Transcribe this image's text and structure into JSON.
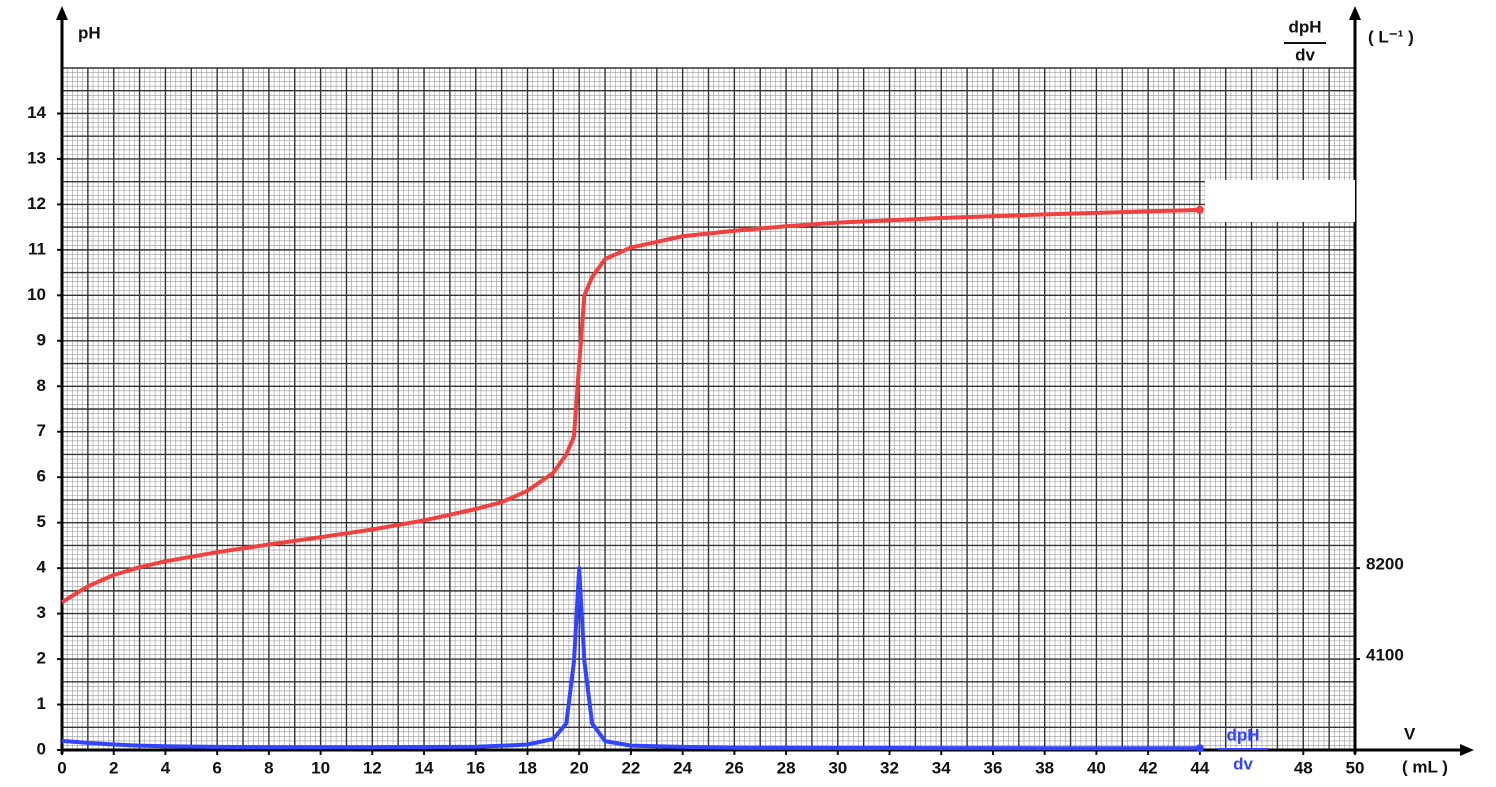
{
  "chart_data": {
    "type": "line",
    "y_label": "pH",
    "y2_label": {
      "numerator": "dpH",
      "denominator": "dv",
      "unit": "( L⁻¹ )"
    },
    "x_label": "V",
    "x_unit": "( mL )",
    "x": [
      0,
      1,
      2,
      3,
      4,
      6,
      8,
      10,
      12,
      14,
      16,
      17,
      18,
      19,
      19.5,
      19.8,
      20,
      20.2,
      20.5,
      21,
      22,
      24,
      26,
      28,
      30,
      34,
      38,
      44
    ],
    "series": [
      {
        "color": "#f04040",
        "values": [
          3.25,
          3.6,
          3.85,
          4.02,
          4.15,
          4.35,
          4.52,
          4.68,
          4.85,
          5.05,
          5.3,
          5.45,
          5.7,
          6.1,
          6.5,
          6.9,
          8.5,
          10,
          10.4,
          10.8,
          11.05,
          11.3,
          11.42,
          11.52,
          11.6,
          11.7,
          11.78,
          11.88
        ]
      },
      {
        "label": {
          "numerator": "dpH",
          "denominator": "dv"
        },
        "color": "#3344ff",
        "axis": "y2",
        "values": [
          410,
          320,
          250,
          200,
          170,
          140,
          125,
          120,
          125,
          135,
          150,
          190,
          250,
          500,
          1200,
          4000,
          8200,
          4000,
          1200,
          400,
          200,
          140,
          100,
          95,
          90,
          85,
          80,
          80
        ]
      }
    ],
    "xlim": [
      0,
      50
    ],
    "xticks": [
      0,
      2,
      4,
      6,
      8,
      10,
      12,
      14,
      16,
      18,
      20,
      22,
      24,
      26,
      28,
      30,
      32,
      34,
      36,
      38,
      40,
      42,
      44,
      48,
      50
    ],
    "ylim": [
      0,
      15
    ],
    "yticks": [
      0,
      1,
      2,
      3,
      4,
      5,
      6,
      7,
      8,
      9,
      10,
      11,
      12,
      13,
      14
    ],
    "y2lim": [
      0,
      30750
    ],
    "y2ticks": [
      4100,
      8200
    ],
    "grid": true
  }
}
